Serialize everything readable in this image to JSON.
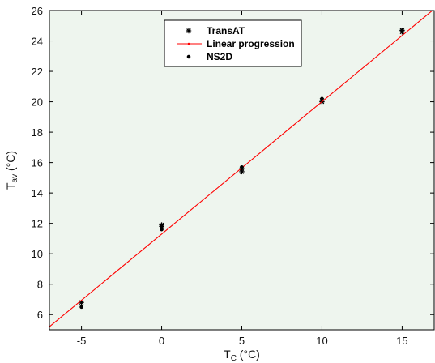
{
  "chart_data": {
    "type": "scatter",
    "xlabel": {
      "main": "T",
      "sub": "C",
      "unit": " (°C)"
    },
    "ylabel": {
      "main": "T",
      "sub": "av",
      "unit": " (°C)"
    },
    "xlim": [
      -7,
      17
    ],
    "ylim": [
      5,
      26
    ],
    "x_ticks": [
      -5,
      0,
      5,
      10,
      15
    ],
    "y_ticks": [
      6,
      8,
      10,
      12,
      14,
      16,
      18,
      20,
      22,
      24,
      26
    ],
    "grid": false,
    "legend_position": "top-center",
    "plot_background": "#eef5ee",
    "series": [
      {
        "name": "TransAT",
        "marker": "asterisk",
        "color": "#000000",
        "points": [
          {
            "x": -5,
            "y": 6.8
          },
          {
            "x": 0,
            "y": 11.8
          },
          {
            "x": 0,
            "y": 11.9
          },
          {
            "x": 5,
            "y": 15.4
          },
          {
            "x": 5,
            "y": 15.6
          },
          {
            "x": 10,
            "y": 20.0
          },
          {
            "x": 10,
            "y": 20.1
          },
          {
            "x": 15,
            "y": 24.6
          },
          {
            "x": 15,
            "y": 24.7
          }
        ]
      },
      {
        "name": "Linear progression",
        "marker": "line",
        "color": "#ff0000",
        "points": [
          {
            "x": -7,
            "y": 5.2
          },
          {
            "x": 17,
            "y": 26.1
          }
        ]
      },
      {
        "name": "NS2D",
        "marker": "dot",
        "color": "#000000",
        "points": [
          {
            "x": -5,
            "y": 6.5
          },
          {
            "x": 0,
            "y": 11.6
          },
          {
            "x": 5,
            "y": 15.7
          },
          {
            "x": 10,
            "y": 20.2
          },
          {
            "x": 15,
            "y": 24.7
          }
        ]
      }
    ]
  }
}
